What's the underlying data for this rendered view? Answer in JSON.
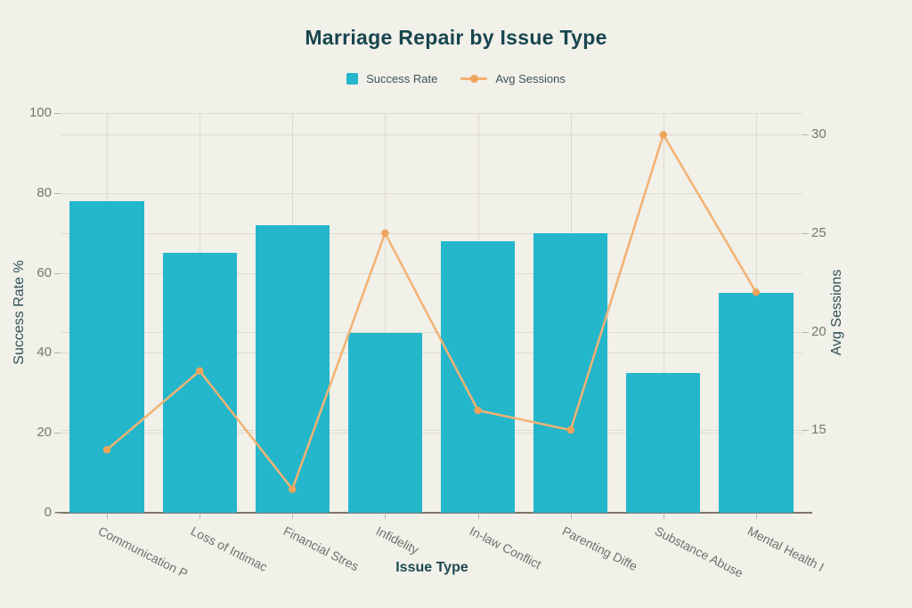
{
  "title": "Marriage Repair by Issue Type",
  "chart_data": {
    "type": "bar",
    "title": "Marriage Repair by Issue Type",
    "xlabel": "Issue Type",
    "categories": [
      "Communication P",
      "Loss of Intimac",
      "Financial Stres",
      "Infidelity",
      "In-law Conflict",
      "Parenting Diffe",
      "Substance Abuse",
      "Mental Health I"
    ],
    "series": [
      {
        "name": "Success Rate",
        "kind": "bar",
        "axis": "left",
        "color": "#24b6cb",
        "values": [
          78,
          65,
          72,
          45,
          68,
          70,
          35,
          55
        ]
      },
      {
        "name": "Avg Sessions",
        "kind": "line",
        "axis": "right",
        "color": "#f3b272",
        "marker_color": "#eda45a",
        "values": [
          14,
          18,
          12,
          25,
          16,
          15,
          30,
          22
        ]
      }
    ],
    "left_axis": {
      "label": "Success Rate %",
      "min": 0,
      "max": 100,
      "ticks": [
        0,
        20,
        40,
        60,
        80,
        100
      ]
    },
    "right_axis": {
      "label": "Avg Sessions",
      "min": 10.8,
      "max": 31.1,
      "ticks": [
        15,
        20,
        25,
        30
      ]
    },
    "grid": true,
    "legend_position": "top"
  },
  "colors": {
    "background": "#f1f0e9",
    "bar": "#24b6cb",
    "line": "#f3b272",
    "marker": "#eda45a",
    "title_text": "#17464f",
    "axis_title_text": "#2f5159",
    "tick_text": "#76776f",
    "gridline": "#dedcd4",
    "axis_line": "#80746a"
  }
}
